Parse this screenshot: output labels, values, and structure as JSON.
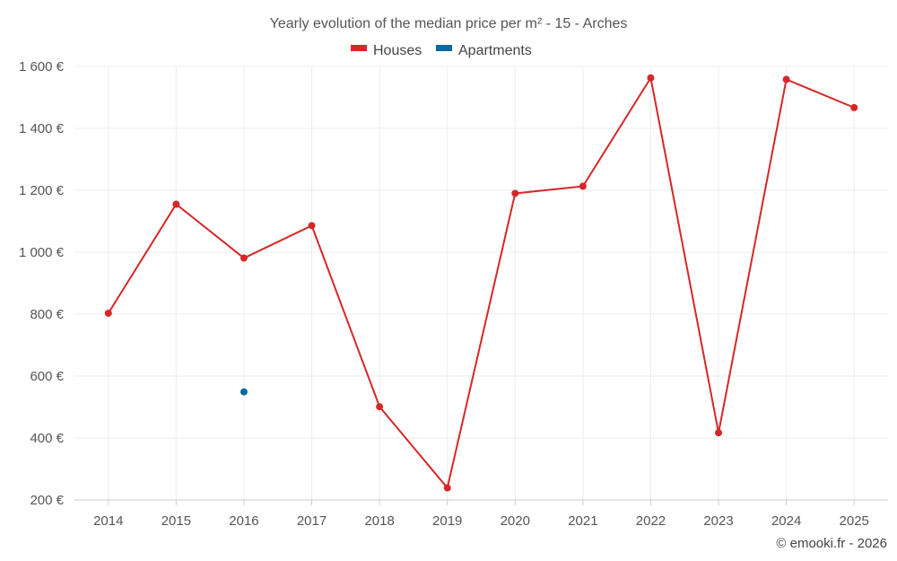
{
  "chart_data": {
    "type": "line",
    "title": "Yearly evolution of the median price per m² - 15 - Arches",
    "categories": [
      "2014",
      "2015",
      "2016",
      "2017",
      "2018",
      "2019",
      "2020",
      "2021",
      "2022",
      "2023",
      "2024",
      "2025"
    ],
    "series": [
      {
        "name": "Houses",
        "color": "#d62728",
        "values": [
          803,
          1155,
          981,
          1086,
          501,
          239,
          1190,
          1213,
          1563,
          417,
          1558,
          1467
        ]
      },
      {
        "name": "Apartments",
        "color": "#0a6aa1",
        "values": [
          null,
          null,
          549,
          null,
          null,
          null,
          null,
          null,
          null,
          null,
          null,
          null
        ]
      }
    ],
    "ylim": [
      200,
      1600
    ],
    "yticks": [
      200,
      400,
      600,
      800,
      1000,
      1200,
      1400,
      1600
    ],
    "ytick_labels": [
      "200 €",
      "400 €",
      "600 €",
      "800 €",
      "1 000 €",
      "1 200 €",
      "1 400 €",
      "1 600 €"
    ],
    "grid": true,
    "legend_position": "top-center"
  },
  "credit": "© emooki.fr - 2026"
}
